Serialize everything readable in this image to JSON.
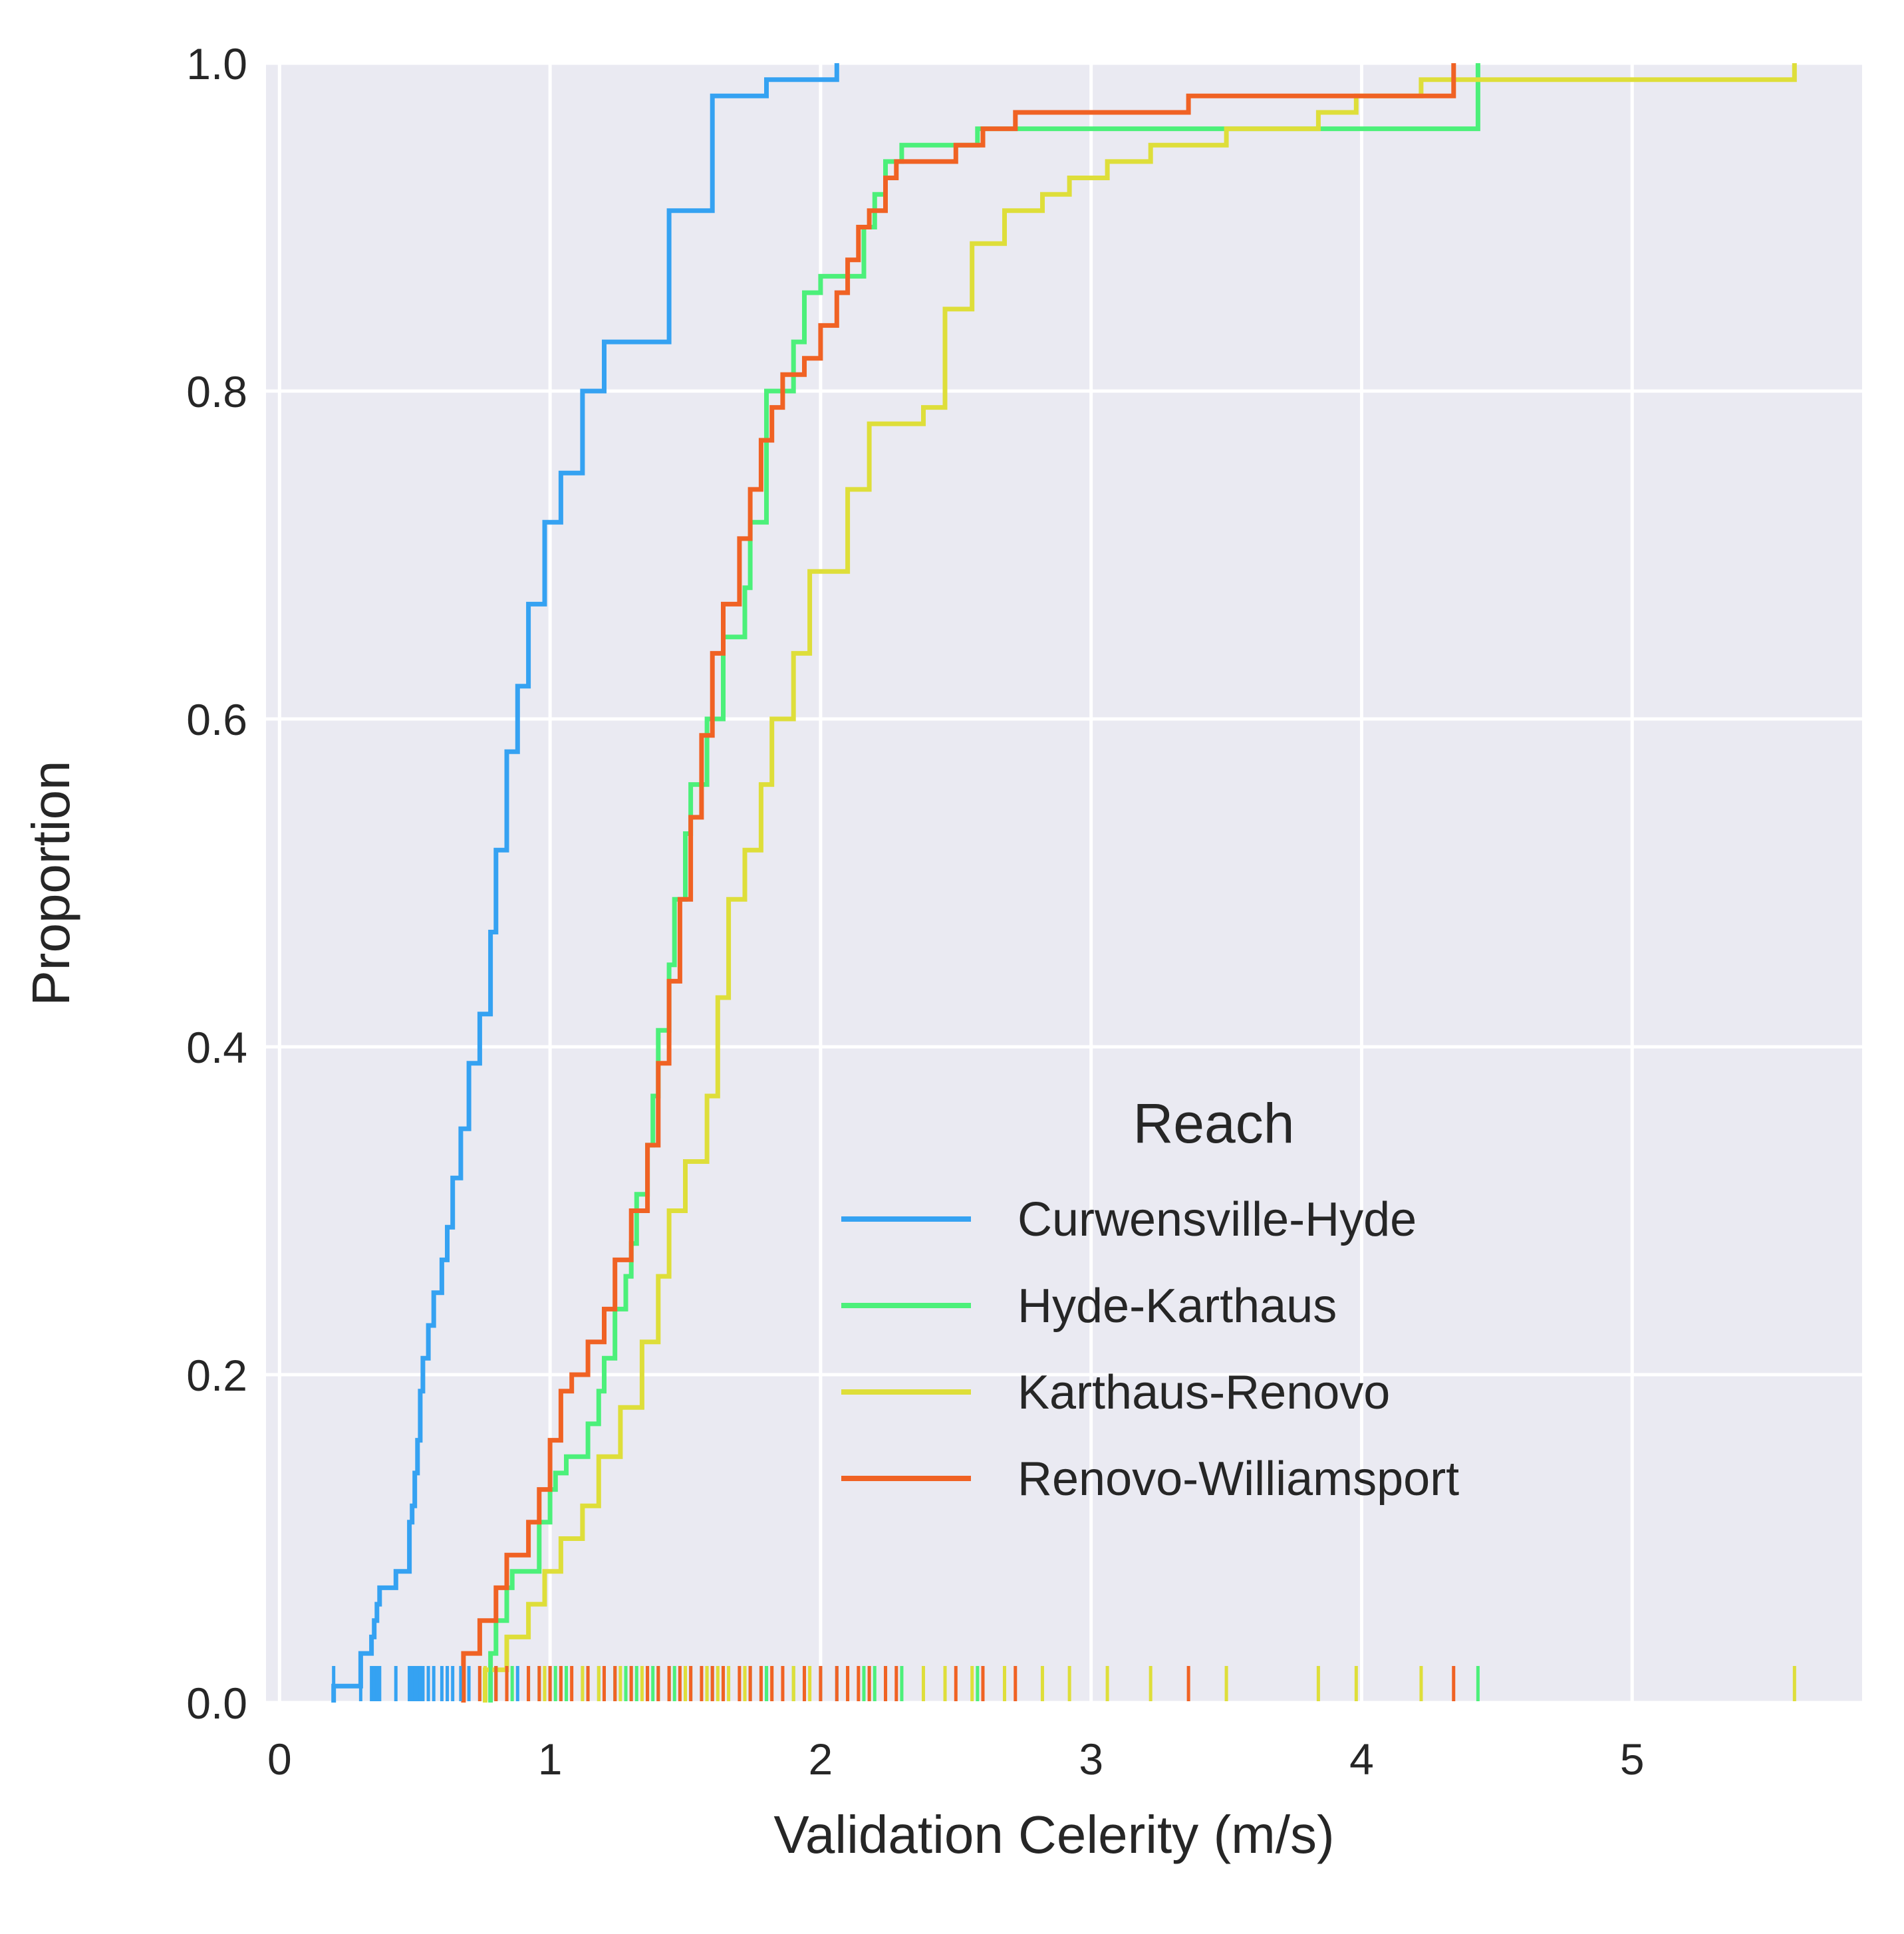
{
  "chart_data": {
    "type": "line",
    "subtype": "ecdf-step-with-rug",
    "xlabel": "Validation Celerity (m/s)",
    "ylabel": "Proportion",
    "xlim": [
      -0.05,
      5.85
    ],
    "ylim": [
      0,
      1
    ],
    "x_ticks": [
      "0",
      "1",
      "2",
      "3",
      "4",
      "5"
    ],
    "y_ticks": [
      "0.0",
      "0.2",
      "0.4",
      "0.6",
      "0.8",
      "1.0"
    ],
    "grid": true,
    "background": "#eaeaf2",
    "legend": {
      "title": "Reach",
      "placement": "lower-right"
    },
    "series": [
      {
        "name": "Curwensville-Hyde",
        "color": "#35a2f2",
        "x": [
          0.2,
          0.3,
          0.34,
          0.35,
          0.36,
          0.37,
          0.43,
          0.48,
          0.49,
          0.5,
          0.51,
          0.52,
          0.53,
          0.55,
          0.57,
          0.6,
          0.62,
          0.64,
          0.67,
          0.7,
          0.74,
          0.78,
          0.8,
          0.84,
          0.88,
          0.92,
          0.98,
          1.04,
          1.12,
          1.2,
          1.44,
          1.6,
          1.8,
          2.06
        ],
        "y": [
          0.01,
          0.03,
          0.04,
          0.05,
          0.06,
          0.07,
          0.08,
          0.11,
          0.12,
          0.14,
          0.16,
          0.19,
          0.21,
          0.23,
          0.25,
          0.27,
          0.29,
          0.32,
          0.35,
          0.39,
          0.42,
          0.47,
          0.52,
          0.58,
          0.62,
          0.67,
          0.72,
          0.75,
          0.8,
          0.83,
          0.91,
          0.98,
          0.99,
          1.0
        ]
      },
      {
        "name": "Hyde-Karthaus",
        "color": "#4cf07a",
        "x": [
          0.78,
          0.8,
          0.84,
          0.86,
          0.96,
          1.0,
          1.02,
          1.06,
          1.14,
          1.18,
          1.2,
          1.24,
          1.28,
          1.3,
          1.32,
          1.36,
          1.38,
          1.4,
          1.44,
          1.46,
          1.5,
          1.52,
          1.58,
          1.64,
          1.72,
          1.74,
          1.8,
          1.9,
          1.94,
          2.0,
          2.16,
          2.2,
          2.24,
          2.3,
          2.58,
          4.43
        ],
        "y": [
          0.03,
          0.05,
          0.07,
          0.08,
          0.11,
          0.13,
          0.14,
          0.15,
          0.17,
          0.19,
          0.21,
          0.24,
          0.26,
          0.28,
          0.31,
          0.34,
          0.37,
          0.41,
          0.45,
          0.49,
          0.53,
          0.56,
          0.6,
          0.65,
          0.68,
          0.72,
          0.8,
          0.83,
          0.86,
          0.87,
          0.9,
          0.92,
          0.94,
          0.95,
          0.96,
          1.0
        ]
      },
      {
        "name": "Karthaus-Renovo",
        "color": "#dede3a",
        "x": [
          0.76,
          0.84,
          0.92,
          0.98,
          1.04,
          1.12,
          1.18,
          1.26,
          1.34,
          1.4,
          1.44,
          1.5,
          1.58,
          1.62,
          1.66,
          1.72,
          1.78,
          1.82,
          1.9,
          1.96,
          2.1,
          2.18,
          2.38,
          2.46,
          2.56,
          2.68,
          2.82,
          2.92,
          3.06,
          3.22,
          3.5,
          3.84,
          3.98,
          4.22,
          5.6
        ],
        "y": [
          0.02,
          0.04,
          0.06,
          0.08,
          0.1,
          0.12,
          0.15,
          0.18,
          0.22,
          0.26,
          0.3,
          0.33,
          0.37,
          0.43,
          0.49,
          0.52,
          0.56,
          0.6,
          0.64,
          0.69,
          0.74,
          0.78,
          0.79,
          0.85,
          0.89,
          0.91,
          0.92,
          0.93,
          0.94,
          0.95,
          0.96,
          0.97,
          0.98,
          0.99,
          1.0
        ]
      },
      {
        "name": "Renovo-Williamsport",
        "color": "#f06224",
        "x": [
          0.68,
          0.74,
          0.8,
          0.84,
          0.92,
          0.96,
          1.0,
          1.04,
          1.08,
          1.14,
          1.2,
          1.24,
          1.3,
          1.36,
          1.4,
          1.44,
          1.48,
          1.52,
          1.56,
          1.6,
          1.64,
          1.7,
          1.74,
          1.78,
          1.82,
          1.86,
          1.94,
          2.0,
          2.06,
          2.1,
          2.14,
          2.18,
          2.24,
          2.28,
          2.5,
          2.6,
          2.72,
          3.36,
          4.34
        ],
        "y": [
          0.03,
          0.05,
          0.07,
          0.09,
          0.11,
          0.13,
          0.16,
          0.19,
          0.2,
          0.22,
          0.24,
          0.27,
          0.3,
          0.34,
          0.39,
          0.44,
          0.49,
          0.54,
          0.59,
          0.64,
          0.67,
          0.71,
          0.74,
          0.77,
          0.79,
          0.81,
          0.82,
          0.84,
          0.86,
          0.88,
          0.9,
          0.91,
          0.93,
          0.94,
          0.95,
          0.96,
          0.97,
          0.98,
          1.0
        ]
      }
    ]
  }
}
